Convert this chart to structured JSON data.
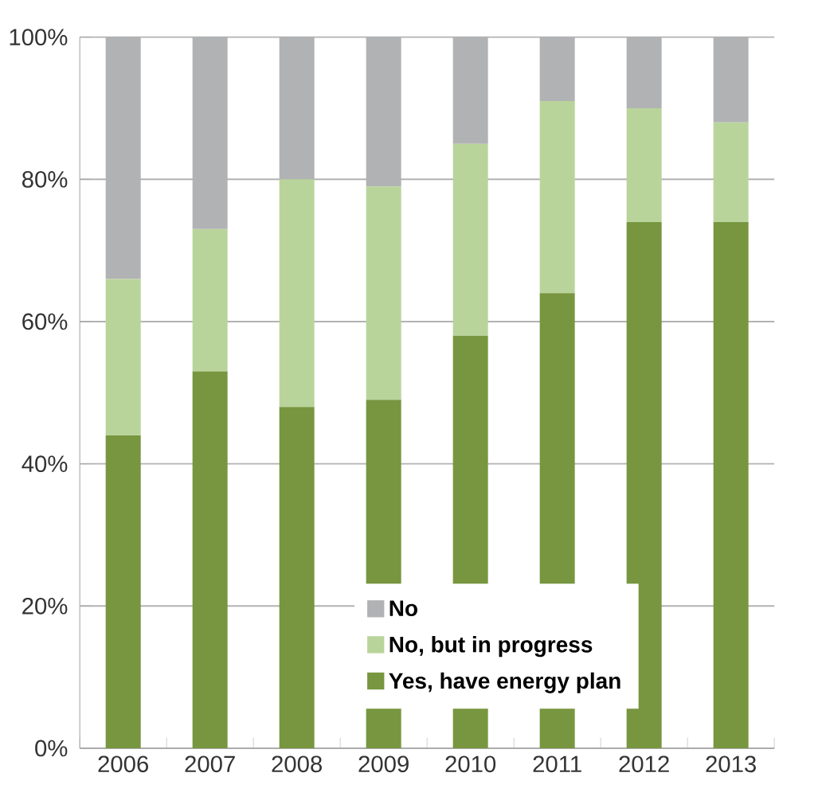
{
  "chart_data": {
    "type": "bar",
    "stacked": true,
    "categories": [
      "2006",
      "2007",
      "2008",
      "2009",
      "2010",
      "2011",
      "2012",
      "2013"
    ],
    "series": [
      {
        "name": "Yes, have energy plan",
        "color": "#77963f",
        "values": [
          44,
          53,
          48,
          49,
          58,
          64,
          74,
          74
        ]
      },
      {
        "name": "No, but in progress",
        "color": "#b9d49b",
        "values": [
          22,
          20,
          32,
          30,
          27,
          27,
          16,
          14
        ]
      },
      {
        "name": "No",
        "color": "#b1b2b4",
        "values": [
          34,
          27,
          20,
          21,
          15,
          9,
          10,
          12
        ]
      }
    ],
    "ylim": [
      0,
      100
    ],
    "yticks": [
      {
        "value": 0,
        "label": "0%"
      },
      {
        "value": 20,
        "label": "20%"
      },
      {
        "value": 40,
        "label": "40%"
      },
      {
        "value": 60,
        "label": "60%"
      },
      {
        "value": 80,
        "label": "80%"
      },
      {
        "value": 100,
        "label": "100%"
      }
    ],
    "grid": "y",
    "legend": "bottom"
  }
}
